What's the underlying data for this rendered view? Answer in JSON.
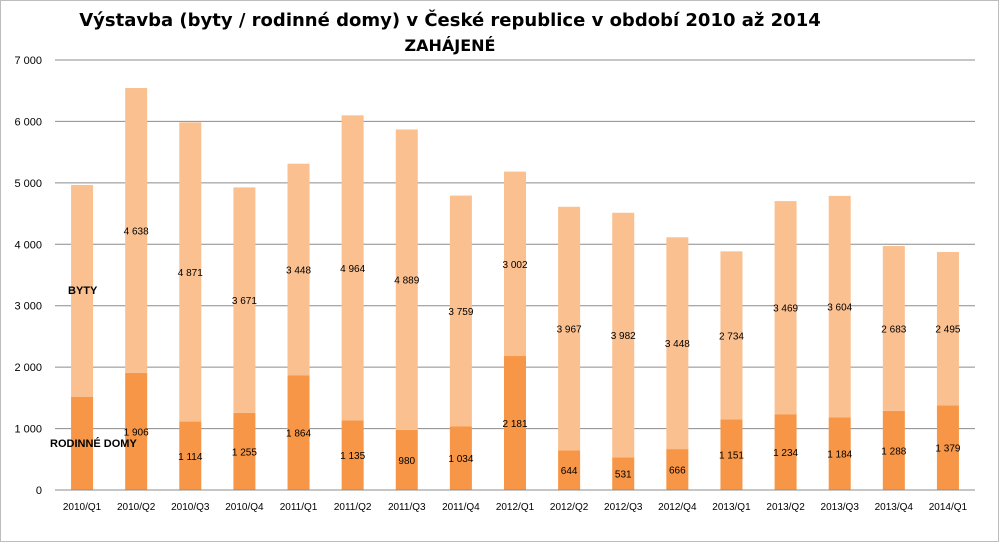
{
  "chart_data": {
    "type": "bar",
    "stacked": true,
    "title": "Výstavba (byty / rodinné domy) v České republice v období 2010 až 2014",
    "subtitle": "ZAHÁJENÉ",
    "categories": [
      "2010/Q1",
      "2010/Q2",
      "2010/Q3",
      "2010/Q4",
      "2011/Q1",
      "2011/Q2",
      "2011/Q3",
      "2011/Q4",
      "2012/Q1",
      "2012/Q2",
      "2012/Q3",
      "2012/Q4",
      "2013/Q1",
      "2013/Q2",
      "2013/Q3",
      "2013/Q4",
      "2014/Q1"
    ],
    "series": [
      {
        "name": "RODINNÉ DOMY",
        "color": "#f79646",
        "values": [
          1514,
          1906,
          1114,
          1255,
          1864,
          1135,
          980,
          1034,
          2181,
          644,
          531,
          666,
          1151,
          1234,
          1184,
          1288,
          1379
        ]
      },
      {
        "name": "BYTY",
        "color": "#fac090",
        "values": [
          3452,
          4638,
          4871,
          3671,
          3448,
          4964,
          4889,
          3759,
          3002,
          3967,
          3982,
          3448,
          2734,
          3469,
          3604,
          2683,
          2495
        ]
      }
    ],
    "data_labels_byty": [
      "",
      "4 638",
      "4 871",
      "3 671",
      "3 448",
      "4 964",
      "4 889",
      "3 759",
      "3 002",
      "3 967",
      "3 982",
      "3 448",
      "2 734",
      "3 469",
      "3 604",
      "2 683",
      "2 495"
    ],
    "data_labels_rd": [
      "",
      "1 906",
      "1 114",
      "1 255",
      "1 864",
      "1 135",
      "980",
      "1 034",
      "2 181",
      "644",
      "531",
      "666",
      "1 151",
      "1 234",
      "1 184",
      "1 288",
      "1 379"
    ],
    "y_ticks": [
      "0",
      "1 000",
      "2 000",
      "3 000",
      "4 000",
      "5 000",
      "6 000",
      "7 000"
    ],
    "ylim": [
      0,
      7000
    ],
    "grid": true,
    "legend": "inline labels on left"
  },
  "annotations": {
    "byty": "BYTY",
    "rodinne_domy": "RODINNÉ DOMY"
  }
}
